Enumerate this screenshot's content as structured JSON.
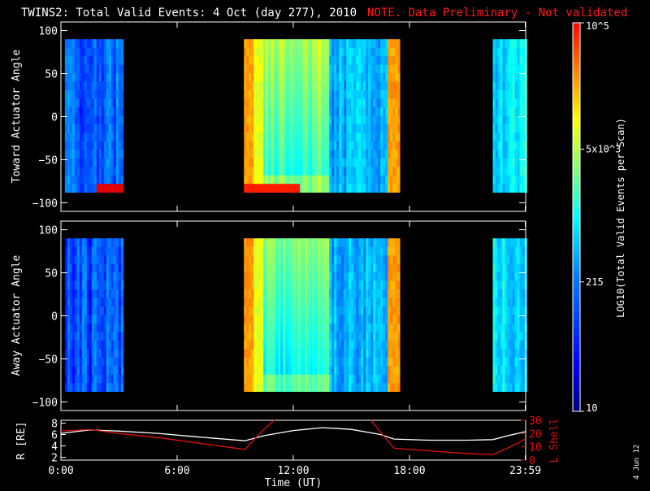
{
  "header": {
    "title": "TWINS2: Total Valid Events:  4 Oct (day 277), 2010",
    "note": "NOTE. Data Preliminary - Not validated"
  },
  "colors": {
    "background": "#000000",
    "foreground": "#ffffff",
    "note": "#ff1a1a",
    "radius_line": "#ffffff",
    "lshell_line": "#e01010"
  },
  "colorbar": {
    "label": "LOG10(Total Valid Events per Scan)",
    "ticks": [
      "10",
      "215",
      "5x10^3",
      "10^5"
    ],
    "tick_values": [
      10,
      215,
      5000,
      100000
    ],
    "scale": "log",
    "colormap": "jet"
  },
  "footer": {
    "date_stamp": "4 Jun 12"
  },
  "chart_data": [
    {
      "type": "heatmap",
      "panel": "toward",
      "ylabel": "Toward Actuator Angle",
      "xlabel": "",
      "yticks": [
        100,
        50,
        0,
        -50,
        -100
      ],
      "ylim": [
        -110,
        110
      ],
      "xlim": [
        0,
        24
      ],
      "data_yrange": [
        -88,
        90
      ],
      "segments": [
        {
          "start": 0.2,
          "end": 3.1,
          "level": 0.22,
          "bottom_level": 0.9,
          "bottom_edge": [
            1.8,
            3.1
          ]
        },
        {
          "start": 9.45,
          "end": 17.4,
          "level": 0.55,
          "bottom_level": 0.85,
          "bottom_edge": [
            9.45,
            12.3
          ]
        },
        {
          "start": 22.3,
          "end": 24.0,
          "level": 0.35
        }
      ]
    },
    {
      "type": "heatmap",
      "panel": "away",
      "ylabel": "Away Actuator Angle",
      "xlabel": "",
      "yticks": [
        100,
        50,
        0,
        -50,
        -100
      ],
      "ylim": [
        -110,
        110
      ],
      "xlim": [
        0,
        24
      ],
      "data_yrange": [
        -88,
        90
      ],
      "segments": [
        {
          "start": 0.2,
          "end": 3.1,
          "level": 0.2
        },
        {
          "start": 9.45,
          "end": 17.4,
          "level": 0.5
        },
        {
          "start": 22.3,
          "end": 24.0,
          "level": 0.35
        }
      ]
    },
    {
      "type": "line",
      "panel": "orbit",
      "ylabel": "R [RE]",
      "y2label": "L Shell",
      "xlabel": "Time (UT)",
      "xticks": [
        "0:00",
        "6:00",
        "12:00",
        "18:00",
        "23:59"
      ],
      "xtick_values": [
        0,
        6,
        12,
        18,
        23.98
      ],
      "yticks": [
        2,
        4,
        6,
        8
      ],
      "ylim": [
        1.5,
        8.5
      ],
      "y2ticks": [
        0,
        10,
        20,
        30
      ],
      "y2lim": [
        0,
        30
      ],
      "series": [
        {
          "axis": "left",
          "x": [
            0,
            1.5,
            3,
            5,
            7,
            9.5,
            10.5,
            12,
            13.5,
            15,
            16.5,
            17.2,
            19,
            21,
            22.3,
            23.2,
            24
          ],
          "y": [
            6.2,
            6.8,
            6.6,
            6.2,
            5.6,
            4.9,
            5.8,
            6.7,
            7.2,
            6.9,
            6.0,
            5.2,
            5.0,
            5.0,
            5.1,
            5.9,
            6.5
          ]
        },
        {
          "axis": "right",
          "x": [
            0,
            1.5,
            3,
            5,
            7,
            9.5,
            10.4,
            11.0,
            null,
            16.0,
            17.2,
            19,
            21,
            22.3,
            23.2,
            24
          ],
          "y": [
            22,
            23,
            20,
            17,
            13,
            8,
            22,
            30,
            null,
            30,
            9,
            7,
            5,
            4,
            10,
            16
          ]
        }
      ]
    }
  ]
}
